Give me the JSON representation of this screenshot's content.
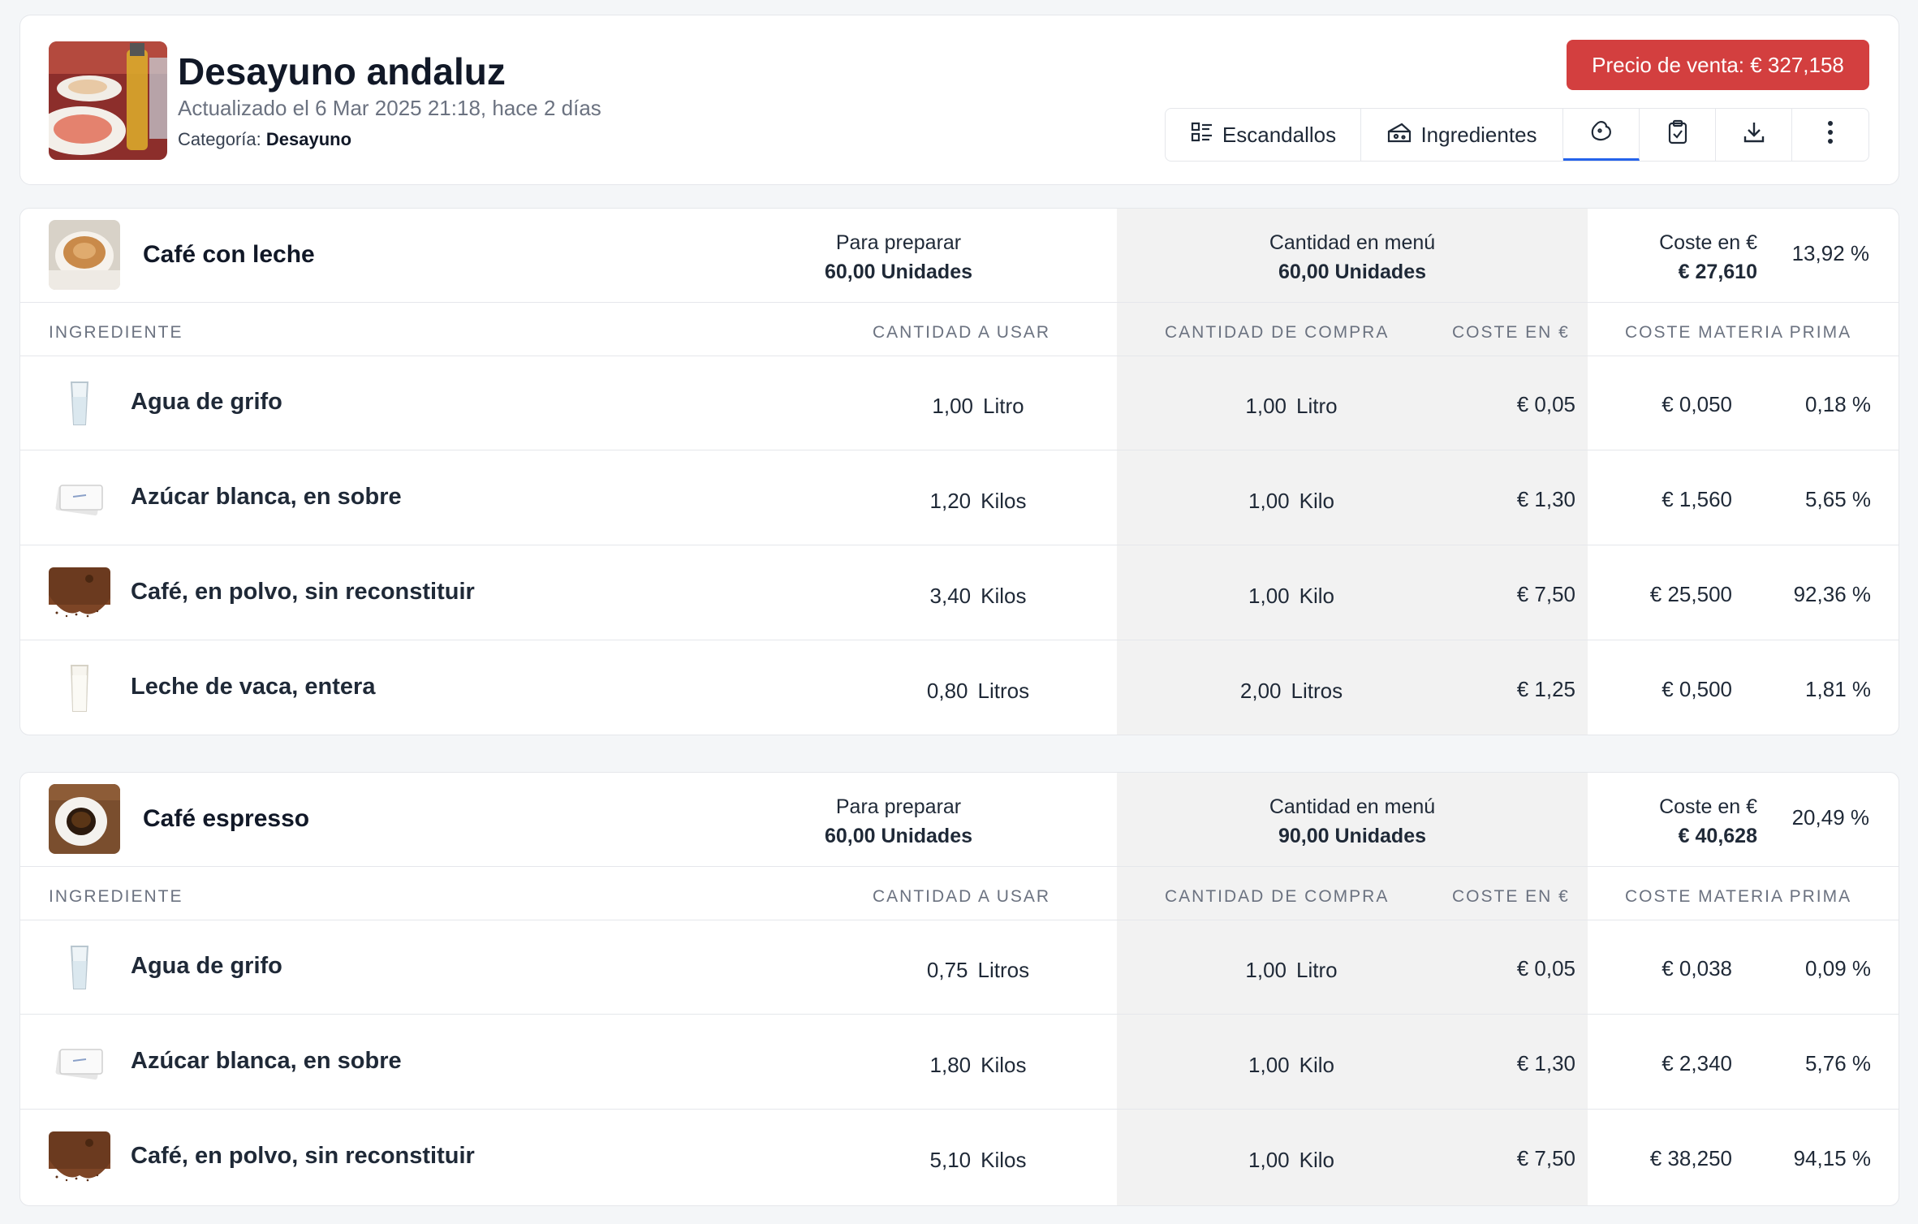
{
  "header": {
    "title": "Desayuno andaluz",
    "updated": "Actualizado el 6 Mar 2025 21:18, hace 2 días",
    "category_label": "Categoría:",
    "category_value": "Desayuno",
    "price_button": "Precio de venta: € 327,158",
    "toolbar": {
      "escandallos": "Escandallos",
      "ingredientes": "Ingredientes"
    }
  },
  "columns": {
    "ingrediente": "INGREDIENTE",
    "cantidad_usar": "CANTIDAD A USAR",
    "cantidad_compra": "CANTIDAD DE COMPRA",
    "coste": "COSTE EN €",
    "coste_materia": "COSTE MATERIA PRIMA"
  },
  "recipes": [
    {
      "name": "Café con leche",
      "prep_label": "Para preparar",
      "prep_value": "60,00 Unidades",
      "menu_label": "Cantidad en menú",
      "menu_value": "60,00 Unidades",
      "cost_label": "Coste en €",
      "cost_value": "€ 27,610",
      "pct": "13,92 %",
      "ingredients": [
        {
          "name": "Agua de grifo",
          "use_qty": "1,00",
          "use_unit": "Litro",
          "buy_qty": "1,00",
          "buy_unit": "Litro",
          "unit_cost": "€ 0,05",
          "raw_cost": "€ 0,050",
          "pct": "0,18 %",
          "icon": "water-glass"
        },
        {
          "name": "Azúcar blanca, en sobre",
          "use_qty": "1,20",
          "use_unit": "Kilos",
          "buy_qty": "1,00",
          "buy_unit": "Kilo",
          "unit_cost": "€ 1,30",
          "raw_cost": "€ 1,560",
          "pct": "5,65 %",
          "icon": "sugar-sachet"
        },
        {
          "name": "Café, en polvo, sin reconstituir",
          "use_qty": "3,40",
          "use_unit": "Kilos",
          "buy_qty": "1,00",
          "buy_unit": "Kilo",
          "unit_cost": "€ 7,50",
          "raw_cost": "€ 25,500",
          "pct": "92,36 %",
          "icon": "coffee-powder"
        },
        {
          "name": "Leche de vaca, entera",
          "use_qty": "0,80",
          "use_unit": "Litros",
          "buy_qty": "2,00",
          "buy_unit": "Litros",
          "unit_cost": "€ 1,25",
          "raw_cost": "€ 0,500",
          "pct": "1,81 %",
          "icon": "milk-glass"
        }
      ]
    },
    {
      "name": "Café espresso",
      "prep_label": "Para preparar",
      "prep_value": "60,00 Unidades",
      "menu_label": "Cantidad en menú",
      "menu_value": "90,00 Unidades",
      "cost_label": "Coste en €",
      "cost_value": "€ 40,628",
      "pct": "20,49 %",
      "ingredients": [
        {
          "name": "Agua de grifo",
          "use_qty": "0,75",
          "use_unit": "Litros",
          "buy_qty": "1,00",
          "buy_unit": "Litro",
          "unit_cost": "€ 0,05",
          "raw_cost": "€ 0,038",
          "pct": "0,09 %",
          "icon": "water-glass"
        },
        {
          "name": "Azúcar blanca, en sobre",
          "use_qty": "1,80",
          "use_unit": "Kilos",
          "buy_qty": "1,00",
          "buy_unit": "Kilo",
          "unit_cost": "€ 1,30",
          "raw_cost": "€ 2,340",
          "pct": "5,76 %",
          "icon": "sugar-sachet"
        },
        {
          "name": "Café, en polvo, sin reconstituir",
          "use_qty": "5,10",
          "use_unit": "Kilos",
          "buy_qty": "1,00",
          "buy_unit": "Kilo",
          "unit_cost": "€ 7,50",
          "raw_cost": "€ 38,250",
          "pct": "94,15 %",
          "icon": "coffee-powder"
        }
      ]
    }
  ]
}
